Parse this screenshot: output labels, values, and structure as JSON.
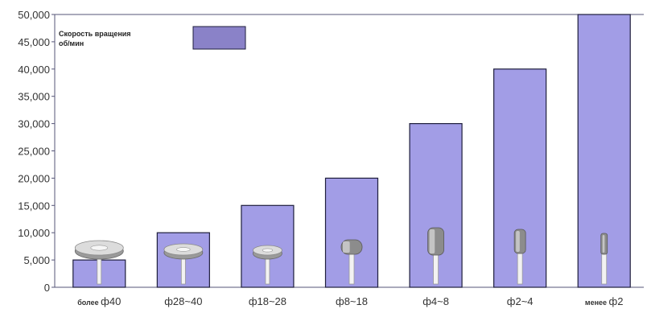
{
  "chart_data": {
    "type": "bar",
    "categories": [
      {
        "prefix": "более",
        "label": "ф40"
      },
      {
        "prefix": "",
        "label": "ф28~40"
      },
      {
        "prefix": "",
        "label": "ф18~28"
      },
      {
        "prefix": "",
        "label": "ф8~18"
      },
      {
        "prefix": "",
        "label": "ф4~8"
      },
      {
        "prefix": "",
        "label": "ф2~4"
      },
      {
        "prefix": "менее",
        "label": "ф2"
      }
    ],
    "series": [
      {
        "name": "Скорость вращения об/мин",
        "values": [
          5000,
          10000,
          15000,
          20000,
          30000,
          40000,
          50000
        ]
      }
    ],
    "legend": {
      "line1": "Скорость вращения",
      "line2": "об/мин",
      "position": "top-left"
    },
    "y_ticks": [
      "0",
      "5,000",
      "10,000",
      "15,000",
      "20,000",
      "25,000",
      "30,000",
      "35,000",
      "40,000",
      "45,000",
      "50,000"
    ],
    "ylim": [
      0,
      50000
    ],
    "grid": false,
    "colors": {
      "bar": "#a29de6",
      "bar_edge": "#1e1e3c",
      "legend_swatch": "#8a82c8",
      "axis": "#555577"
    },
    "icons": [
      "grinding-disc-wide",
      "grinding-disc-medium",
      "grinding-disc-small",
      "mounted-point-cylinder",
      "mounted-point-long",
      "mounted-point-thin",
      "mounted-point-needle"
    ]
  }
}
